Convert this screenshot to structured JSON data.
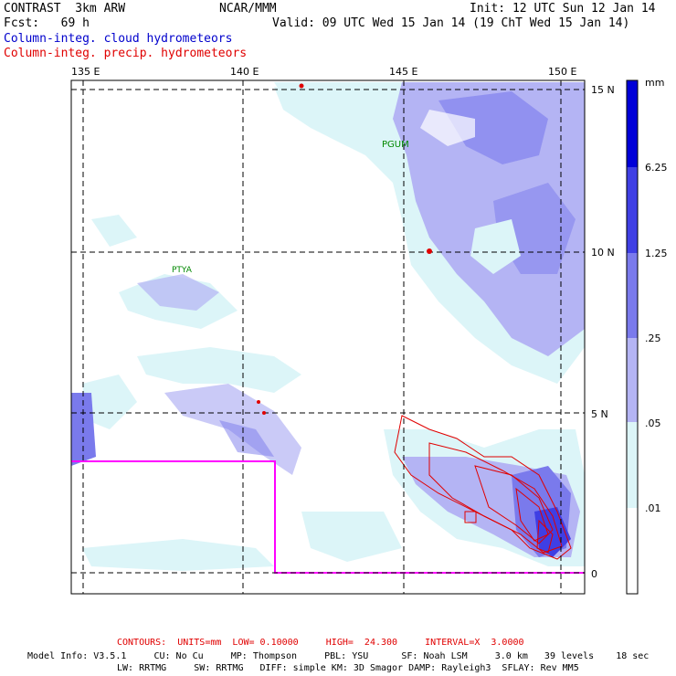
{
  "header": {
    "model": "CONTRAST  3km ARW",
    "forecast": "Fcst:   69 h",
    "center": "NCAR/MMM",
    "init": "Init: 12 UTC Sun 12 Jan 14",
    "valid": "Valid: 09 UTC Wed 15 Jan 14 (19 ChT Wed 15 Jan 14)",
    "field_cloud": "Column-integ. cloud hydrometeors",
    "field_precip": "Column-integ. precip. hydrometeors"
  },
  "map": {
    "lon_labels": [
      "135 E",
      "140 E",
      "145 E",
      "150 E"
    ],
    "lat_labels": [
      "15 N",
      "10 N",
      "5 N",
      "0"
    ],
    "stations": [
      "PGUM",
      "PTYA"
    ]
  },
  "colorbar": {
    "unit": "mm",
    "labels": [
      "6.25",
      "1.25",
      ".25",
      ".05",
      ".01"
    ],
    "colors": [
      "#0000d8",
      "#3f3fe4",
      "#7a7aec",
      "#b4b4f4",
      "#dcf5f8",
      "#ffffff"
    ]
  },
  "footer": {
    "contours": "CONTOURS:  UNITS=mm  LOW= 0.10000     HIGH=  24.300     INTERVAL=X  3.0000",
    "model_info_1": "Model Info: V3.5.1     CU: No Cu     MP: Thompson     PBL: YSU      SF: Noah LSM     3.0 km   39 levels    18 sec",
    "model_info_2": "LW: RRTMG     SW: RRTMG   DIFF: simple KM: 3D Smagor DAMP: Rayleigh3  SFLAY: Rev MM5"
  },
  "colors": {
    "contour": "#e00000",
    "domain_box": "#ff00ff",
    "cloud_light": "#dcf5f8",
    "cloud_mid": "#b4b4f4",
    "cloud_dark": "#7a7aec"
  }
}
